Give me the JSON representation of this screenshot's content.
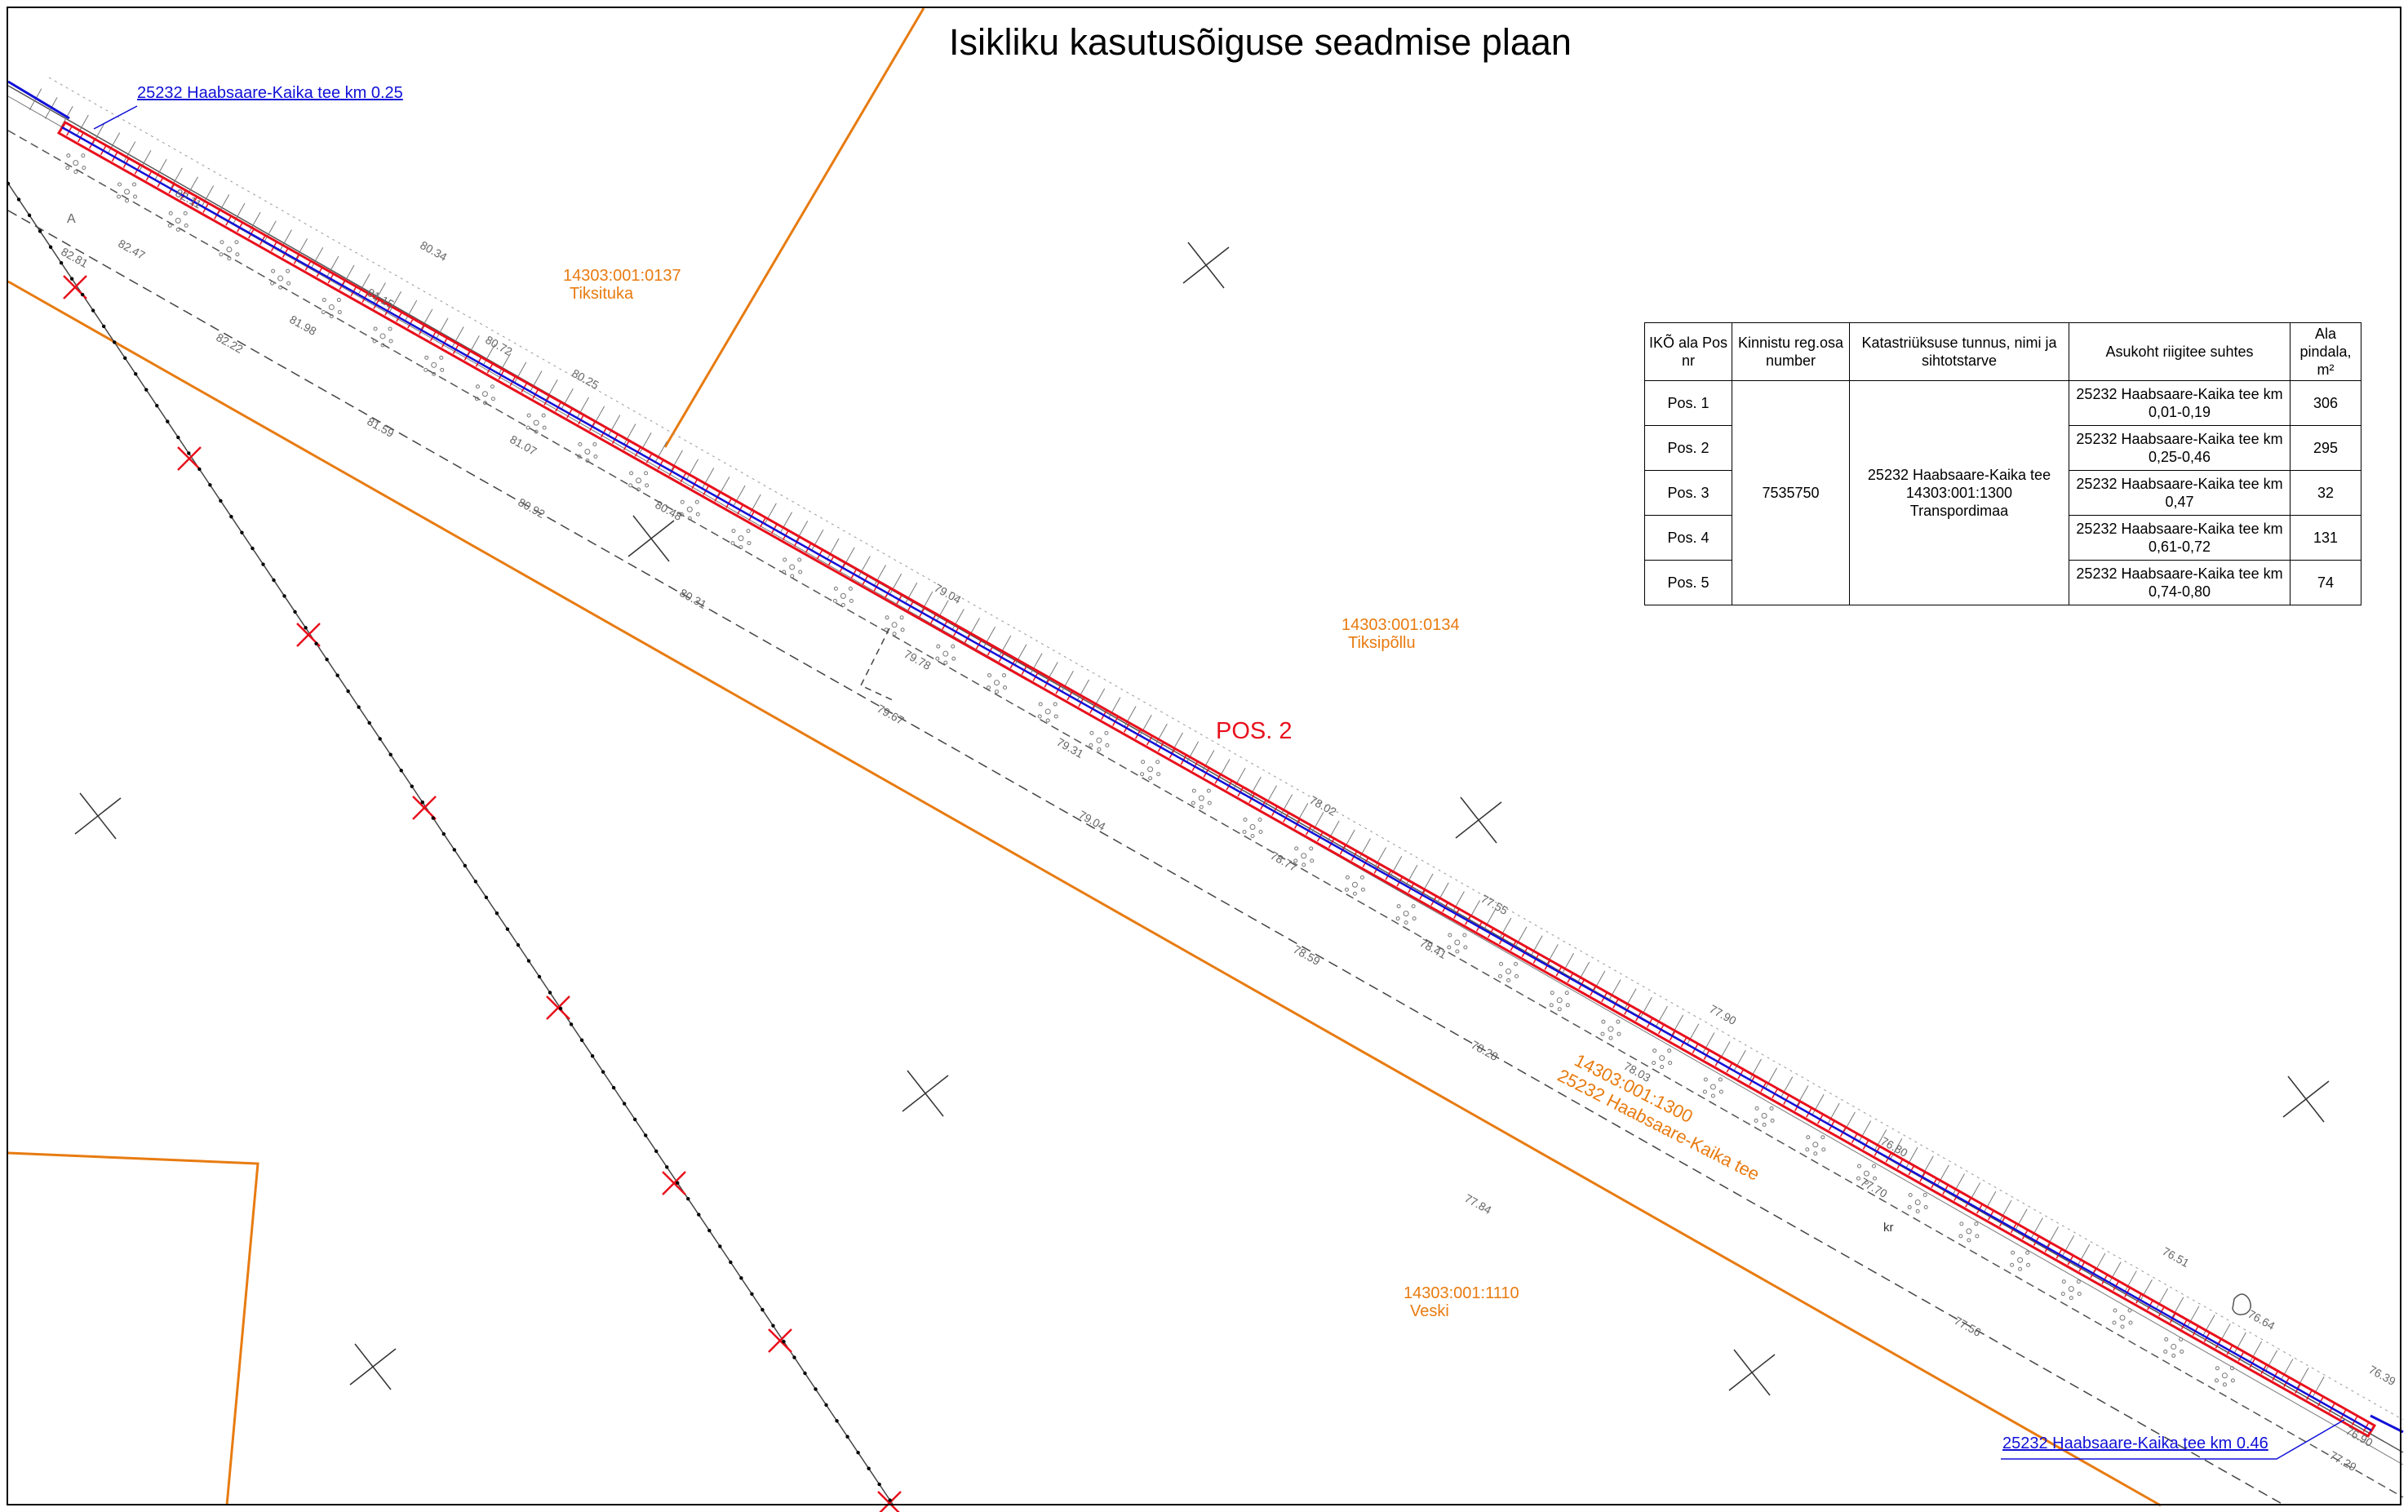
{
  "title": "Isikliku kasutusõiguse seadmise plaan",
  "parcels": {
    "tiksituka": {
      "id": "14303:001:0137",
      "name": "Tiksituka"
    },
    "tiksipollu": {
      "id": "14303:001:0134",
      "name": "Tiksipõllu"
    },
    "road": {
      "id": "14303:001:1300",
      "name": "25232 Haabsaare-Kaika tee"
    },
    "veski": {
      "id": "14303:001:1110",
      "name": "Veski"
    }
  },
  "callouts": {
    "start": "25232 Haabsaare-Kaika tee km 0.25",
    "end": "25232 Haabsaare-Kaika tee km 0.46"
  },
  "pos_label": "POS. 2",
  "map_marks": {
    "letter_a": "A",
    "letter_kr": "kr"
  },
  "elevations": [
    "82.81",
    "82.47",
    "82.22",
    "81.59",
    "80.92",
    "80.31",
    "81.07",
    "81.98",
    "80.34",
    "81.15",
    "80.72",
    "80.25",
    "80.48",
    "79.04",
    "79.78",
    "79.67",
    "79.31",
    "79.04",
    "78.59",
    "78.77",
    "78.41",
    "78.02",
    "77.55",
    "77.90",
    "78.03",
    "78.28",
    "77.84",
    "77.56",
    "76.80",
    "77.70",
    "76.64",
    "76.51",
    "76.39",
    "76.90",
    "77.29",
    "82.11"
  ],
  "colors": {
    "parcel": "#e87b10",
    "strip": "#e8101c",
    "road_line": "#1010d8",
    "railway_cross": "#e8101c"
  },
  "table": {
    "headers": [
      "IKÕ ala Pos nr",
      "Kinnistu reg.osa number",
      "Katastriüksuse tunnus, nimi ja sihtotstarve",
      "Asukoht riigitee suhtes",
      "Ala pindala, m²"
    ],
    "registry_number": "7535750",
    "cadastral": [
      "25232 Haabsaare-Kaika tee",
      "14303:001:1300",
      "Transpordimaa"
    ],
    "rows": [
      {
        "pos": "Pos. 1",
        "location": "25232 Haabsaare-Kaika tee km 0,01-0,19",
        "area": "306"
      },
      {
        "pos": "Pos. 2",
        "location": "25232 Haabsaare-Kaika tee km 0,25-0,46",
        "area": "295"
      },
      {
        "pos": "Pos. 3",
        "location": "25232 Haabsaare-Kaika tee km 0,47",
        "area": "32"
      },
      {
        "pos": "Pos. 4",
        "location": "25232 Haabsaare-Kaika tee km 0,61-0,72",
        "area": "131"
      },
      {
        "pos": "Pos. 5",
        "location": "25232 Haabsaare-Kaika tee km 0,74-0,80",
        "area": "74"
      }
    ]
  }
}
